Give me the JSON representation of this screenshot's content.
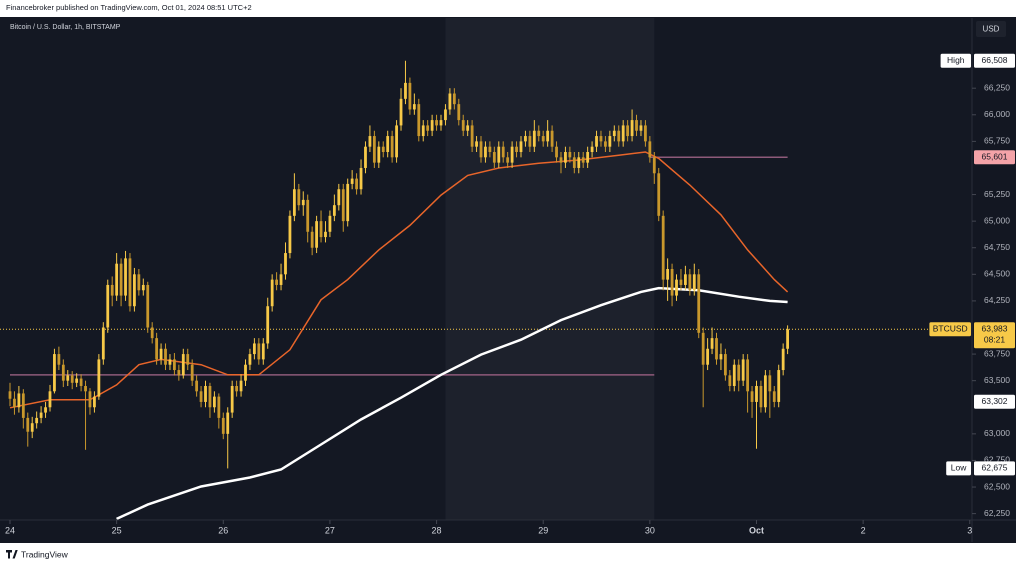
{
  "header": "Financebroker published on TradingView.com, Oct 01, 2024 08:51 UTC+2",
  "footer": "TradingView",
  "chart_data": {
    "type": "candlestick",
    "title": "Bitcoin / U.S. Dollar, 1h, BITSTAMP",
    "currency": "USD",
    "up_color": "#f7c948",
    "down_color": "#c9982c",
    "xlim": [
      -2.25,
      216.5
    ],
    "xticks": [
      {
        "value": 0,
        "label": "24"
      },
      {
        "value": 24,
        "label": "25"
      },
      {
        "value": 48,
        "label": "26"
      },
      {
        "value": 72,
        "label": "27"
      },
      {
        "value": 96,
        "label": "28"
      },
      {
        "value": 120,
        "label": "29"
      },
      {
        "value": 144,
        "label": "30"
      },
      {
        "value": 168,
        "label": "Oct"
      },
      {
        "value": 192,
        "label": "2"
      },
      {
        "value": 216,
        "label": "3"
      }
    ],
    "ylim": [
      62190,
      66910
    ],
    "yticks": [
      {
        "value": 62250,
        "label": "62,250"
      },
      {
        "value": 62500,
        "label": "62,500"
      },
      {
        "value": 62750,
        "label": "62,750"
      },
      {
        "value": 63000,
        "label": "63,000"
      },
      {
        "value": 63500,
        "label": "63,500"
      },
      {
        "value": 63750,
        "label": "63,750"
      },
      {
        "value": 64250,
        "label": "64,250"
      },
      {
        "value": 64500,
        "label": "64,500"
      },
      {
        "value": 64750,
        "label": "64,750"
      },
      {
        "value": 65000,
        "label": "65,000"
      },
      {
        "value": 65250,
        "label": "65,250"
      },
      {
        "value": 65750,
        "label": "65,750"
      },
      {
        "value": 66000,
        "label": "66,000"
      },
      {
        "value": 66250,
        "label": "66,250"
      }
    ],
    "shaded_x": [
      98,
      145
    ],
    "candles": [
      [
        63400,
        63480,
        63260,
        63330
      ],
      [
        63330,
        63400,
        63180,
        63250
      ],
      [
        63250,
        63450,
        63200,
        63380
      ],
      [
        63380,
        63420,
        63050,
        63150
      ],
      [
        63150,
        63200,
        62880,
        63020
      ],
      [
        63020,
        63160,
        62960,
        63100
      ],
      [
        63100,
        63210,
        63050,
        63150
      ],
      [
        63150,
        63260,
        63100,
        63200
      ],
      [
        63200,
        63300,
        63150,
        63250
      ],
      [
        63250,
        63460,
        63210,
        63400
      ],
      [
        63400,
        63800,
        63380,
        63750
      ],
      [
        63750,
        63820,
        63600,
        63650
      ],
      [
        63650,
        63700,
        63440,
        63500
      ],
      [
        63500,
        63600,
        63450,
        63550
      ],
      [
        63550,
        63590,
        63420,
        63480
      ],
      [
        63480,
        63570,
        63440,
        63520
      ],
      [
        63520,
        63560,
        63400,
        63450
      ],
      [
        63450,
        63500,
        62850,
        63400
      ],
      [
        63400,
        63430,
        63180,
        63250
      ],
      [
        63250,
        63400,
        63200,
        63350
      ],
      [
        63350,
        63750,
        63320,
        63700
      ],
      [
        63700,
        64050,
        63650,
        64000
      ],
      [
        64000,
        64450,
        63950,
        64400
      ],
      [
        64400,
        64480,
        64200,
        64300
      ],
      [
        64300,
        64700,
        64250,
        64600
      ],
      [
        64600,
        64650,
        64200,
        64300
      ],
      [
        64300,
        64720,
        64250,
        64650
      ],
      [
        64650,
        64700,
        64150,
        64200
      ],
      [
        64200,
        64560,
        64150,
        64500
      ],
      [
        64500,
        64550,
        64300,
        64350
      ],
      [
        64350,
        64460,
        64300,
        64400
      ],
      [
        64400,
        64430,
        63950,
        64000
      ],
      [
        64000,
        64050,
        63850,
        63900
      ],
      [
        63900,
        63950,
        63650,
        63700
      ],
      [
        63700,
        63850,
        63650,
        63800
      ],
      [
        63800,
        63850,
        63600,
        63650
      ],
      [
        63650,
        63750,
        63600,
        63700
      ],
      [
        63700,
        63760,
        63550,
        63600
      ],
      [
        63600,
        63650,
        63500,
        63550
      ],
      [
        63550,
        63800,
        63520,
        63750
      ],
      [
        63750,
        63800,
        63600,
        63650
      ],
      [
        63650,
        63700,
        63450,
        63500
      ],
      [
        63500,
        63550,
        63350,
        63400
      ],
      [
        63400,
        63450,
        63250,
        63300
      ],
      [
        63300,
        63500,
        63250,
        63450
      ],
      [
        63450,
        63480,
        63150,
        63250
      ],
      [
        63250,
        63400,
        63200,
        63350
      ],
      [
        63350,
        63380,
        63050,
        63150
      ],
      [
        63150,
        63200,
        62950,
        63000
      ],
      [
        63000,
        63250,
        62675,
        63200
      ],
      [
        63200,
        63500,
        63150,
        63450
      ],
      [
        63450,
        63500,
        63350,
        63400
      ],
      [
        63400,
        63560,
        63350,
        63500
      ],
      [
        63500,
        63700,
        63450,
        63650
      ],
      [
        63650,
        63800,
        63600,
        63750
      ],
      [
        63750,
        63900,
        63700,
        63850
      ],
      [
        63850,
        63900,
        63650,
        63700
      ],
      [
        63700,
        63900,
        63650,
        63850
      ],
      [
        63850,
        64280,
        63800,
        64200
      ],
      [
        64200,
        64500,
        64150,
        64450
      ],
      [
        64450,
        64520,
        64350,
        64400
      ],
      [
        64400,
        64600,
        64350,
        64500
      ],
      [
        64500,
        64800,
        64450,
        64700
      ],
      [
        64700,
        65100,
        64650,
        65050
      ],
      [
        65050,
        65450,
        65000,
        65300
      ],
      [
        65300,
        65350,
        65100,
        65150
      ],
      [
        65150,
        65280,
        65050,
        65200
      ],
      [
        65200,
        65250,
        64800,
        64900
      ],
      [
        64900,
        64950,
        64680,
        64750
      ],
      [
        64750,
        65050,
        64700,
        65000
      ],
      [
        65000,
        65100,
        64800,
        64850
      ],
      [
        64850,
        65000,
        64800,
        64900
      ],
      [
        64900,
        65100,
        64850,
        65050
      ],
      [
        65050,
        65250,
        65000,
        65150
      ],
      [
        65150,
        65350,
        65100,
        65300
      ],
      [
        65300,
        65350,
        64900,
        65000
      ],
      [
        65000,
        65400,
        64950,
        65350
      ],
      [
        65350,
        65480,
        65300,
        65400
      ],
      [
        65400,
        65450,
        65250,
        65300
      ],
      [
        65300,
        65580,
        65250,
        65500
      ],
      [
        65500,
        65750,
        65450,
        65700
      ],
      [
        65700,
        65900,
        65650,
        65800
      ],
      [
        65800,
        65850,
        65500,
        65550
      ],
      [
        65550,
        65750,
        65500,
        65700
      ],
      [
        65700,
        65750,
        65600,
        65650
      ],
      [
        65650,
        65850,
        65600,
        65800
      ],
      [
        65800,
        65850,
        65550,
        65600
      ],
      [
        65600,
        65950,
        65550,
        65900
      ],
      [
        65900,
        66250,
        65850,
        66150
      ],
      [
        66150,
        66508,
        66100,
        66300
      ],
      [
        66300,
        66350,
        66000,
        66050
      ],
      [
        66050,
        66200,
        66000,
        66100
      ],
      [
        66100,
        66150,
        65750,
        65800
      ],
      [
        65800,
        65950,
        65750,
        65900
      ],
      [
        65900,
        65950,
        65800,
        65850
      ],
      [
        65850,
        66000,
        65800,
        65950
      ],
      [
        65950,
        66000,
        65850,
        65900
      ],
      [
        65900,
        66000,
        65850,
        65950
      ],
      [
        65950,
        66100,
        65900,
        66050
      ],
      [
        66050,
        66250,
        66000,
        66200
      ],
      [
        66200,
        66250,
        66050,
        66100
      ],
      [
        66100,
        66150,
        65900,
        65950
      ],
      [
        65950,
        66000,
        65800,
        65850
      ],
      [
        65850,
        65950,
        65800,
        65900
      ],
      [
        65900,
        65950,
        65650,
        65700
      ],
      [
        65700,
        65800,
        65650,
        65750
      ],
      [
        65750,
        65800,
        65550,
        65600
      ],
      [
        65600,
        65750,
        65550,
        65700
      ],
      [
        65700,
        65750,
        65600,
        65650
      ],
      [
        65650,
        65700,
        65500,
        65550
      ],
      [
        65550,
        65750,
        65500,
        65700
      ],
      [
        65700,
        65750,
        65550,
        65600
      ],
      [
        65600,
        65650,
        65500,
        65550
      ],
      [
        65550,
        65750,
        65500,
        65700
      ],
      [
        65700,
        65750,
        65600,
        65650
      ],
      [
        65650,
        65800,
        65600,
        65750
      ],
      [
        65750,
        65850,
        65700,
        65800
      ],
      [
        65800,
        65850,
        65650,
        65700
      ],
      [
        65700,
        65950,
        65650,
        65850
      ],
      [
        65850,
        65900,
        65750,
        65800
      ],
      [
        65800,
        65850,
        65700,
        65750
      ],
      [
        65750,
        65950,
        65700,
        65850
      ],
      [
        65850,
        65900,
        65650,
        65700
      ],
      [
        65700,
        65750,
        65550,
        65600
      ],
      [
        65600,
        65650,
        65450,
        65550
      ],
      [
        65550,
        65700,
        65500,
        65650
      ],
      [
        65650,
        65700,
        65550,
        65600
      ],
      [
        65600,
        65650,
        65450,
        65500
      ],
      [
        65500,
        65650,
        65450,
        65600
      ],
      [
        65600,
        65650,
        65500,
        65550
      ],
      [
        65550,
        65700,
        65500,
        65650
      ],
      [
        65650,
        65750,
        65600,
        65700
      ],
      [
        65700,
        65850,
        65650,
        65800
      ],
      [
        65800,
        65850,
        65700,
        65750
      ],
      [
        65750,
        65800,
        65650,
        65700
      ],
      [
        65700,
        65850,
        65650,
        65800
      ],
      [
        65800,
        65900,
        65750,
        65850
      ],
      [
        65850,
        65900,
        65700,
        65750
      ],
      [
        65750,
        65950,
        65700,
        65900
      ],
      [
        65900,
        65950,
        65750,
        65800
      ],
      [
        65800,
        66050,
        65750,
        65950
      ],
      [
        65950,
        66000,
        65800,
        65850
      ],
      [
        65850,
        65950,
        65800,
        65900
      ],
      [
        65900,
        65950,
        65700,
        65750
      ],
      [
        65750,
        65800,
        65550,
        65600
      ],
      [
        65600,
        65650,
        65350,
        65450
      ],
      [
        65450,
        65500,
        65000,
        65050
      ],
      [
        65050,
        65100,
        64350,
        64450
      ],
      [
        64450,
        64650,
        64250,
        64550
      ],
      [
        64550,
        64600,
        64200,
        64300
      ],
      [
        64300,
        64500,
        64250,
        64450
      ],
      [
        64450,
        64550,
        64350,
        64400
      ],
      [
        64400,
        64580,
        64350,
        64500
      ],
      [
        64500,
        64550,
        64300,
        64350
      ],
      [
        64350,
        64600,
        64300,
        64500
      ],
      [
        64500,
        64550,
        63900,
        63950
      ],
      [
        63950,
        64000,
        63250,
        63650
      ],
      [
        63650,
        63900,
        63600,
        63800
      ],
      [
        63800,
        64000,
        63750,
        63900
      ],
      [
        63900,
        63950,
        63650,
        63700
      ],
      [
        63700,
        63850,
        63600,
        63750
      ],
      [
        63750,
        63800,
        63500,
        63550
      ],
      [
        63550,
        63600,
        63400,
        63450
      ],
      [
        63450,
        63700,
        63400,
        63650
      ],
      [
        63650,
        63700,
        63400,
        63500
      ],
      [
        63500,
        63750,
        63450,
        63700
      ],
      [
        63700,
        63750,
        63200,
        63400
      ],
      [
        63400,
        63450,
        63150,
        63300
      ],
      [
        63300,
        63500,
        62860,
        63450
      ],
      [
        63450,
        63500,
        63200,
        63250
      ],
      [
        63250,
        63600,
        63200,
        63550
      ],
      [
        63550,
        63600,
        63150,
        63400
      ],
      [
        63400,
        63450,
        63250,
        63300
      ],
      [
        63300,
        63650,
        63250,
        63600
      ],
      [
        63600,
        63850,
        63550,
        63800
      ],
      [
        63800,
        64020,
        63750,
        63983
      ]
    ],
    "moving_averages": [
      {
        "color": "#e8652a",
        "x": [
          0,
          9,
          18,
          24,
          29,
          34,
          43,
          49,
          56,
          63,
          70,
          76,
          83,
          90,
          97,
          103,
          110,
          119,
          128,
          137,
          143,
          146,
          153,
          160,
          166,
          172,
          175
        ],
        "values": [
          63245,
          63320,
          63320,
          63460,
          63650,
          63700,
          63650,
          63555,
          63555,
          63790,
          64260,
          64450,
          64730,
          64960,
          65245,
          65430,
          65500,
          65545,
          65575,
          65620,
          65650,
          65590,
          65340,
          65060,
          64730,
          64450,
          64335
        ]
      },
      {
        "color": "#ffffff",
        "x": [
          24,
          31,
          43,
          54,
          61,
          70,
          79,
          88,
          97,
          106,
          115,
          124,
          133,
          142,
          146,
          155,
          164,
          171,
          175
        ],
        "values": [
          62200,
          62335,
          62505,
          62590,
          62665,
          62900,
          63135,
          63340,
          63555,
          63745,
          63885,
          64070,
          64210,
          64335,
          64370,
          64350,
          64290,
          64250,
          64240
        ]
      }
    ],
    "levels": [
      {
        "value": 65601,
        "from": 144,
        "to": 175,
        "color": "#8e5a7a"
      },
      {
        "value": 63555,
        "from": 0,
        "to": 145,
        "color": "#8e5a7a"
      }
    ],
    "price_labels": [
      {
        "label": "High",
        "value": 66508,
        "value_label": "66,508",
        "color": "#ffffff"
      },
      {
        "value": 65601,
        "value_label": "65,601",
        "color": "#f4a3a8"
      },
      {
        "label": "BTCUSD",
        "value": 63983,
        "value_label": "63,983",
        "countdown": "08:21",
        "color": "#f7c948"
      },
      {
        "value": 63302,
        "value_label": "63,302",
        "color": "#ffffff"
      },
      {
        "label": "Low",
        "value": 62675,
        "value_label": "62,675",
        "color": "#ffffff"
      }
    ]
  }
}
